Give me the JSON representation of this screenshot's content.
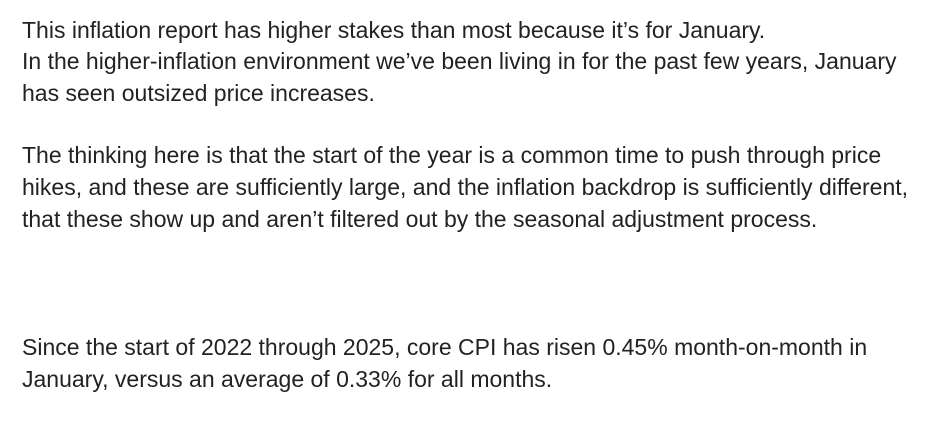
{
  "paragraphs": [
    "This inflation report has higher stakes than most because it’s for January.",
    "In the higher-inflation environment we’ve been living in for the past few years, January has seen outsized price increases.",
    "The thinking here is that the start of the year is a common time to push through price hikes, and these are sufficiently large, and the inflation backdrop is sufficiently different, that these show up and aren’t filtered out by the seasonal adjustment process.",
    "Since the start of 2022 through 2025, core CPI has risen 0.45% month-on-month in January, versus an average of 0.33% for all months."
  ]
}
